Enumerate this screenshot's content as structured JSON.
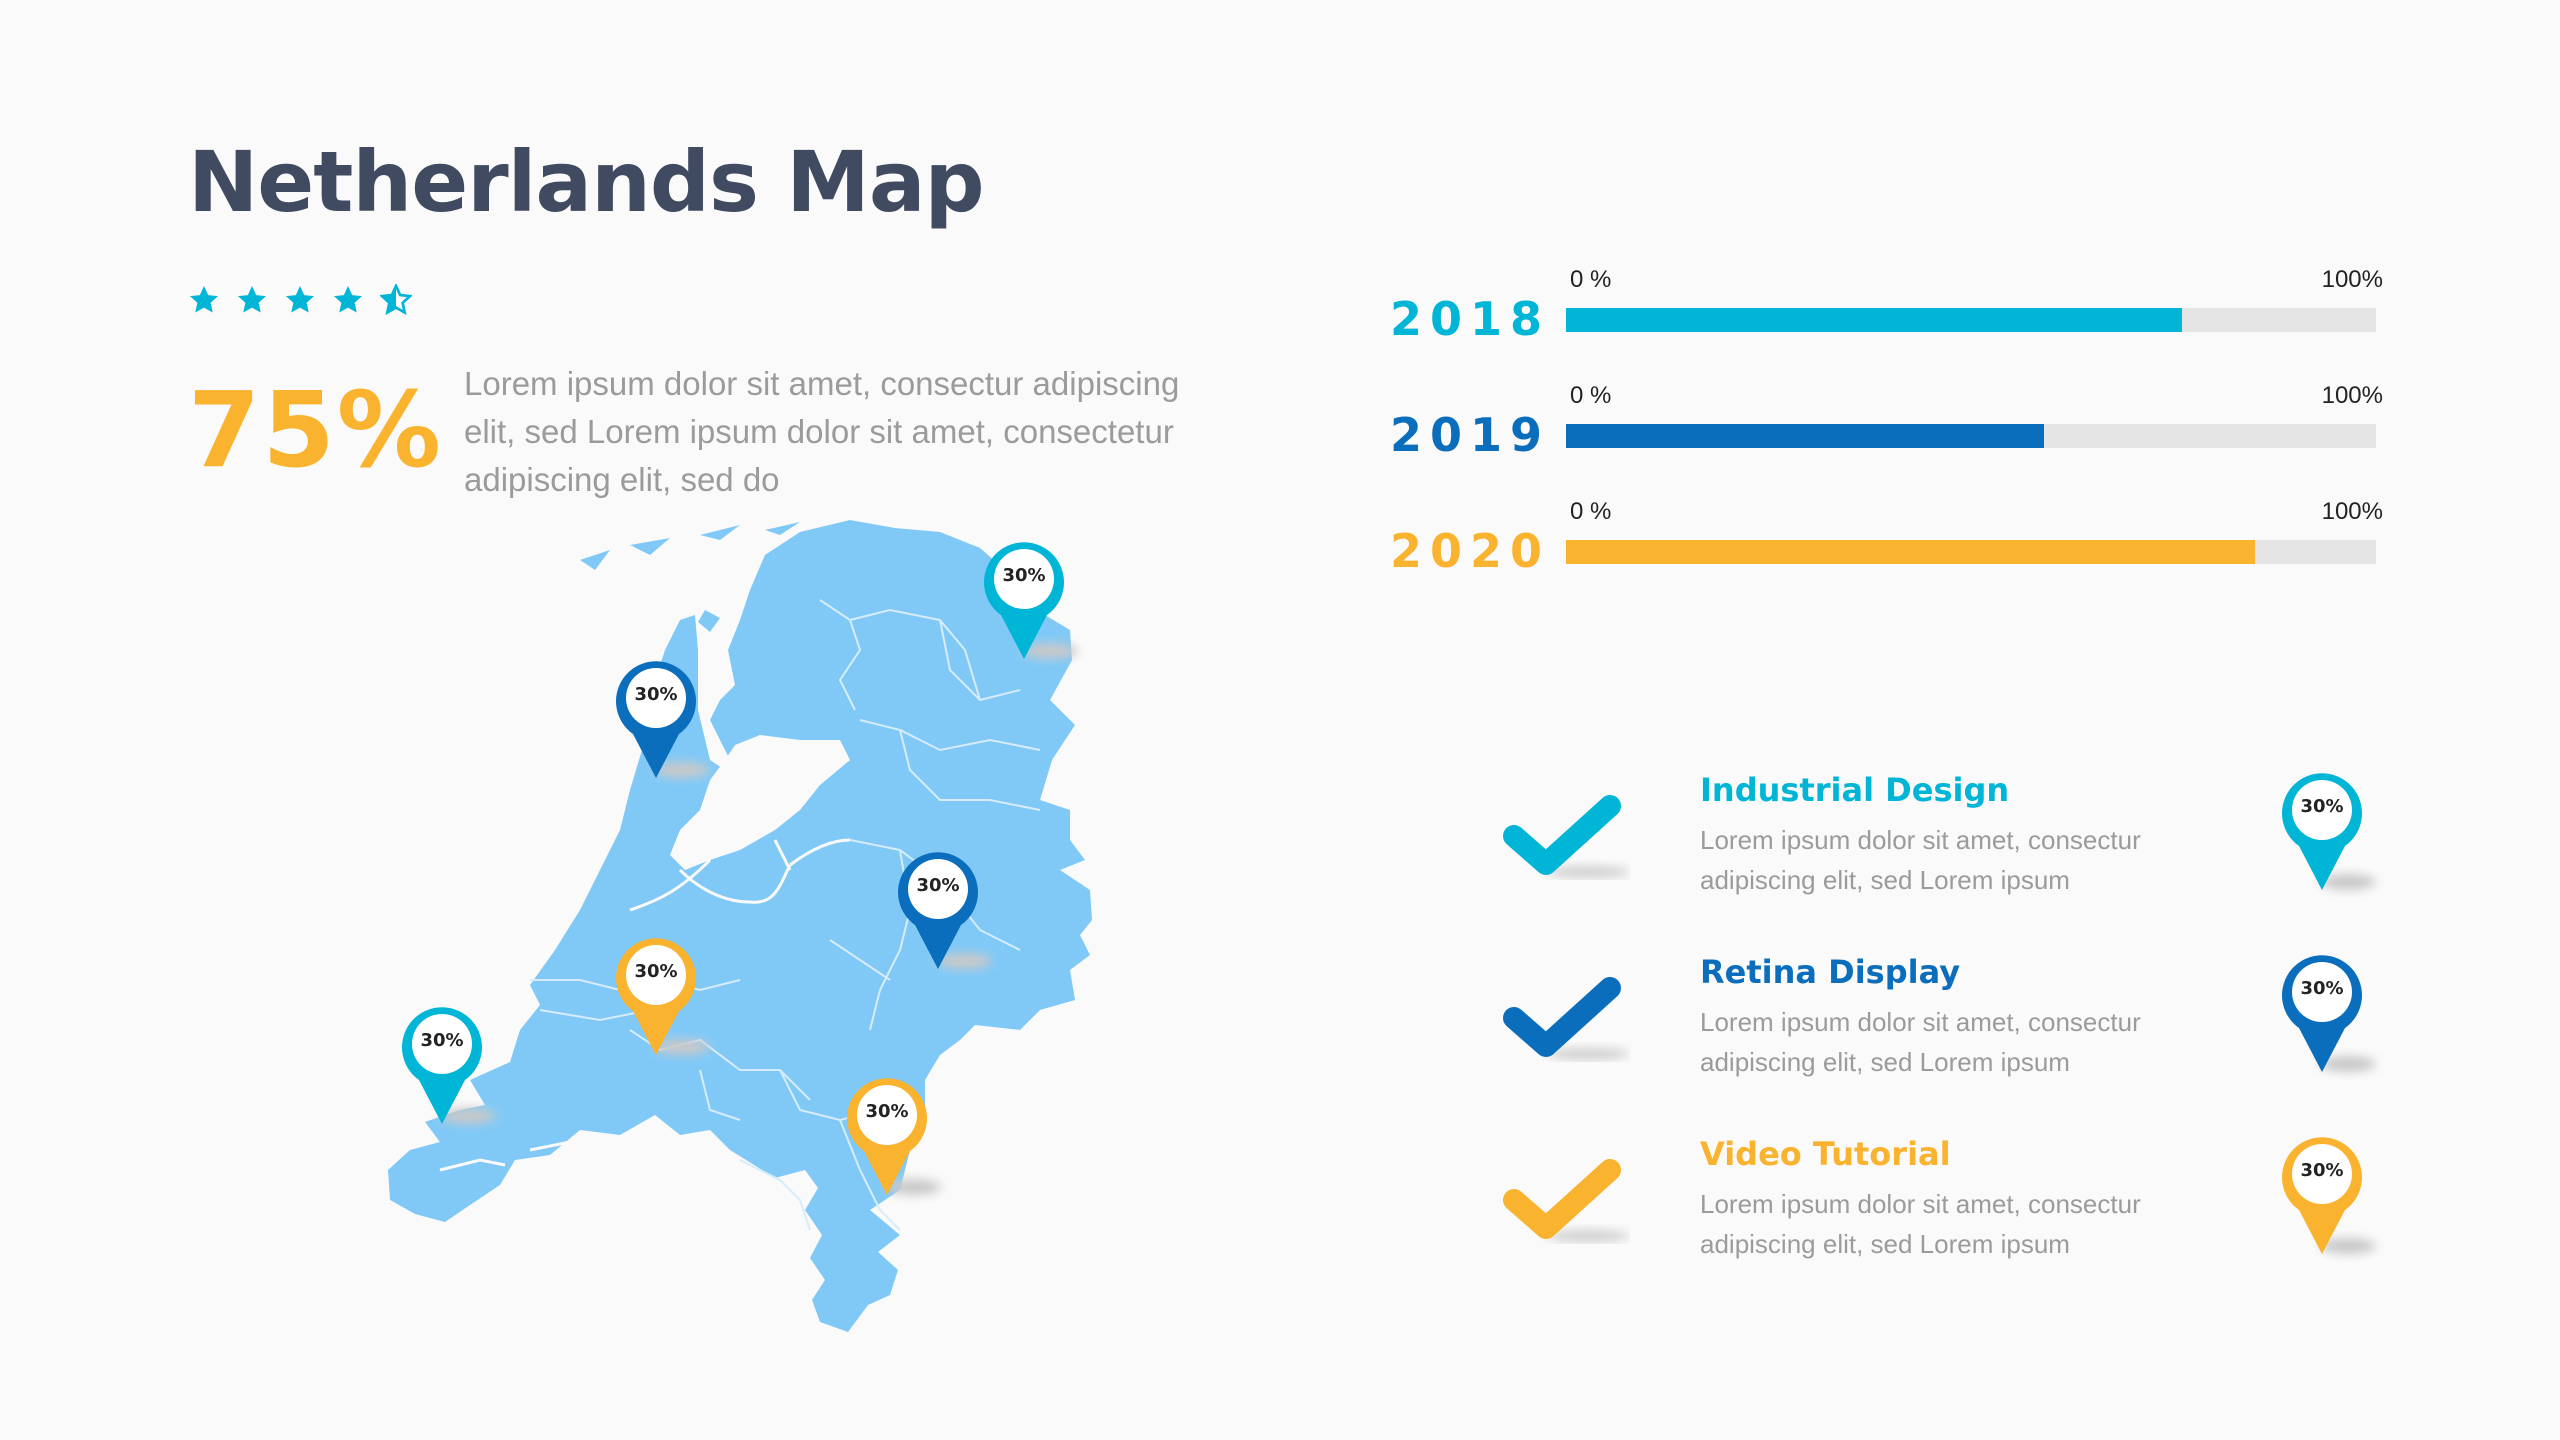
{
  "title": "Netherlands Map",
  "rating": {
    "value": 4.5,
    "max": 5
  },
  "highlight": {
    "percent": "75%",
    "text": "Lorem ipsum dolor sit amet, consectur adipiscing elit, sed Lorem ipsum dolor sit amet, consectetur adipiscing elit, sed do"
  },
  "colors": {
    "cyan": "#00b5d6",
    "blue": "#0b6ebd",
    "yellow": "#f9b32f",
    "map": "#80c9f7",
    "title": "#404b61"
  },
  "map_pins": [
    {
      "label": "30%",
      "color": "cyan"
    },
    {
      "label": "30%",
      "color": "blue"
    },
    {
      "label": "30%",
      "color": "blue"
    },
    {
      "label": "30%",
      "color": "yellow"
    },
    {
      "label": "30%",
      "color": "cyan"
    },
    {
      "label": "30%",
      "color": "yellow"
    }
  ],
  "progress_bars": [
    {
      "year": "2018",
      "min_label": "0 %",
      "max_label": "100%",
      "value": 76,
      "color": "cyan"
    },
    {
      "year": "2019",
      "min_label": "0 %",
      "max_label": "100%",
      "value": 59,
      "color": "blue"
    },
    {
      "year": "2020",
      "min_label": "0 %",
      "max_label": "100%",
      "value": 85,
      "color": "yellow"
    }
  ],
  "features": [
    {
      "title": "Industrial Design",
      "description": "Lorem ipsum dolor sit amet, consectur adipiscing elit, sed Lorem ipsum",
      "pin_label": "30%",
      "color": "cyan"
    },
    {
      "title": "Retina Display",
      "description": "Lorem ipsum dolor sit amet, consectur adipiscing elit, sed Lorem ipsum",
      "pin_label": "30%",
      "color": "blue"
    },
    {
      "title": "Video Tutorial",
      "description": "Lorem ipsum dolor sit amet, consectur adipiscing elit, sed Lorem ipsum",
      "pin_label": "30%",
      "color": "yellow"
    }
  ]
}
